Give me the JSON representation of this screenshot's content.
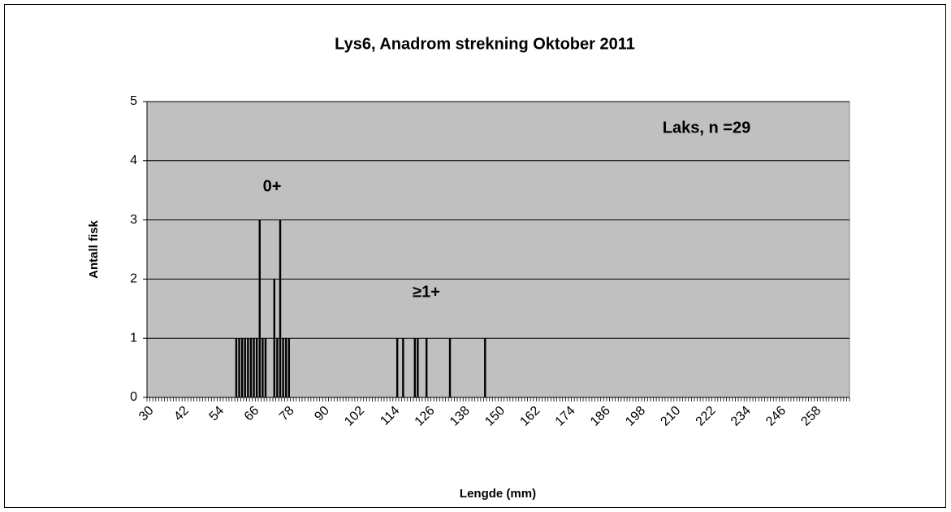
{
  "chart_data": {
    "type": "bar",
    "title": "Lys6, Anadrom strekning Oktober 2011",
    "x_label": "Lengde (mm)",
    "y_label": "Antall fisk",
    "annotations": [
      "Laks, n =29",
      "0+",
      "≥1+"
    ],
    "color": "#000000",
    "plot_background": "#c0c0c0",
    "grid": true,
    "ylim": [
      0,
      5
    ],
    "yticks": [
      0,
      1,
      2,
      3,
      4,
      5
    ],
    "categories": [
      "30",
      null,
      null,
      null,
      null,
      null,
      null,
      null,
      null,
      null,
      null,
      null,
      "42",
      null,
      null,
      null,
      null,
      null,
      null,
      null,
      null,
      null,
      null,
      null,
      "54",
      null,
      null,
      null,
      null,
      null,
      null,
      null,
      null,
      null,
      null,
      null,
      "66",
      null,
      null,
      null,
      null,
      null,
      null,
      null,
      null,
      null,
      null,
      null,
      "78",
      null,
      null,
      null,
      null,
      null,
      null,
      null,
      null,
      null,
      null,
      null,
      "90",
      null,
      null,
      null,
      null,
      null,
      null,
      null,
      null,
      null,
      null,
      null,
      "102",
      null,
      null,
      null,
      null,
      null,
      null,
      null,
      null,
      null,
      null,
      null,
      "114",
      null,
      null,
      null,
      null,
      null,
      null,
      null,
      null,
      null,
      null,
      null,
      "126",
      null,
      null,
      null,
      null,
      null,
      null,
      null,
      null,
      null,
      null,
      null,
      "138",
      null,
      null,
      null,
      null,
      null,
      null,
      null,
      null,
      null,
      null,
      null,
      "150",
      null,
      null,
      null,
      null,
      null,
      null,
      null,
      null,
      null,
      null,
      null,
      "162",
      null,
      null,
      null,
      null,
      null,
      null,
      null,
      null,
      null,
      null,
      null,
      "174",
      null,
      null,
      null,
      null,
      null,
      null,
      null,
      null,
      null,
      null,
      null,
      "186",
      null,
      null,
      null,
      null,
      null,
      null,
      null,
      null,
      null,
      null,
      null,
      "198",
      null,
      null,
      null,
      null,
      null,
      null,
      null,
      null,
      null,
      null,
      null,
      "210",
      null,
      null,
      null,
      null,
      null,
      null,
      null,
      null,
      null,
      null,
      null,
      "222",
      null,
      null,
      null,
      null,
      null,
      null,
      null,
      null,
      null,
      null,
      null,
      "234",
      null,
      null,
      null,
      null,
      null,
      null,
      null,
      null,
      null,
      null,
      null,
      "246",
      null,
      null,
      null,
      null,
      null,
      null,
      null,
      null,
      null,
      null,
      null,
      "258",
      null,
      null,
      null,
      null,
      null,
      null,
      null,
      null,
      null,
      null,
      null
    ],
    "values": [
      0,
      0,
      0,
      0,
      0,
      0,
      0,
      0,
      0,
      0,
      0,
      0,
      0,
      0,
      0,
      0,
      0,
      0,
      0,
      0,
      0,
      0,
      0,
      0,
      0,
      0,
      0,
      0,
      0,
      0,
      1,
      1,
      1,
      1,
      1,
      1,
      1,
      1,
      3,
      1,
      1,
      0,
      0,
      2,
      1,
      3,
      1,
      1,
      1,
      0,
      0,
      0,
      0,
      0,
      0,
      0,
      0,
      0,
      0,
      0,
      0,
      0,
      0,
      0,
      0,
      0,
      0,
      0,
      0,
      0,
      0,
      0,
      0,
      0,
      0,
      0,
      0,
      0,
      0,
      0,
      0,
      0,
      0,
      0,
      0,
      1,
      0,
      1,
      0,
      0,
      0,
      1,
      1,
      0,
      0,
      1,
      0,
      0,
      0,
      0,
      0,
      0,
      0,
      1,
      0,
      0,
      0,
      0,
      0,
      0,
      0,
      0,
      0,
      0,
      0,
      1,
      0,
      0,
      0,
      0,
      0,
      0,
      0,
      0,
      0,
      0,
      0,
      0,
      0,
      0,
      0,
      0,
      0,
      0,
      0,
      0,
      0,
      0,
      0,
      0,
      0,
      0,
      0,
      0,
      0,
      0,
      0,
      0,
      0,
      0,
      0,
      0,
      0,
      0,
      0,
      0,
      0,
      0,
      0,
      0,
      0,
      0,
      0,
      0,
      0,
      0,
      0,
      0,
      0,
      0,
      0,
      0,
      0,
      0,
      0,
      0,
      0,
      0,
      0,
      0,
      0,
      0,
      0,
      0,
      0,
      0,
      0,
      0,
      0,
      0,
      0,
      0,
      0,
      0,
      0,
      0,
      0,
      0,
      0,
      0,
      0,
      0,
      0,
      0,
      0,
      0,
      0,
      0,
      0,
      0,
      0,
      0,
      0,
      0,
      0,
      0,
      0,
      0,
      0,
      0,
      0,
      0,
      0,
      0,
      0,
      0,
      0,
      0,
      0,
      0,
      0,
      0,
      0,
      0,
      0,
      0,
      0,
      0,
      0,
      0
    ]
  }
}
